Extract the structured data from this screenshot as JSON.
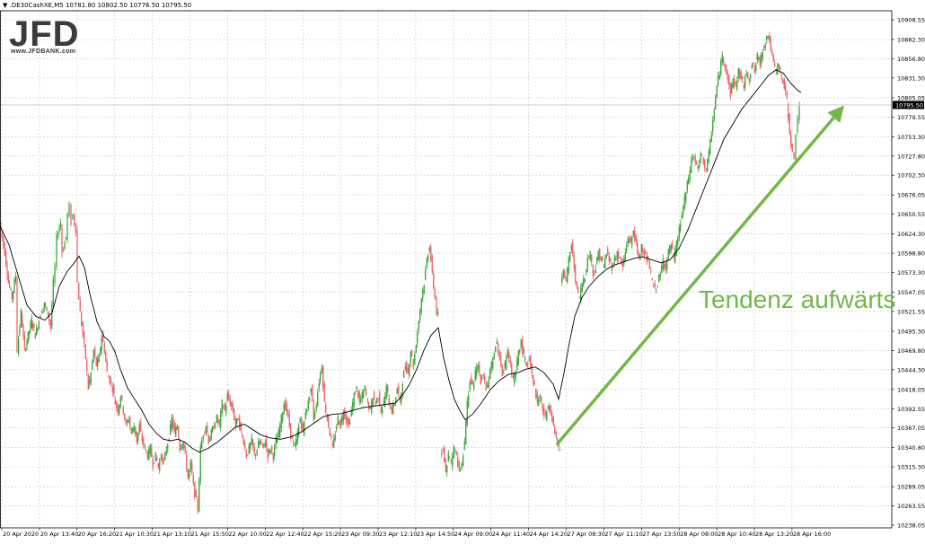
{
  "header": {
    "symbol_line": "▼ .DE30CashXE,M5  10781.80 10802.50 10776.50 10795.50"
  },
  "logo": {
    "mark": "JFD",
    "url": "www.JFDBANK.com"
  },
  "annotation": {
    "text": "Tendenz aufwärts",
    "color": "#71b849"
  },
  "colors": {
    "bull": "#2ca02c",
    "bear": "#e8595f",
    "ma": "#000000",
    "grid": "#c8c8c8",
    "price_tag_bg": "#000000"
  },
  "chart_data": {
    "type": "candlestick",
    "symbol": ".DE30CashXE",
    "timeframe": "M5",
    "last_bar": {
      "open": 10781.8,
      "high": 10802.5,
      "low": 10776.5,
      "close": 10795.5
    },
    "current_price": "10795.50",
    "ylim": [
      10238.05,
      10908.55
    ],
    "y_ticks": [
      "10908.55",
      "10882.30",
      "10856.80",
      "10831.30",
      "10805.05",
      "10779.55",
      "10753.30",
      "10727.80",
      "10702.30",
      "10676.05",
      "10650.55",
      "10624.30",
      "10598.80",
      "10573.30",
      "10547.05",
      "10521.55",
      "10495.30",
      "10469.80",
      "10444.30",
      "10418.05",
      "10392.55",
      "10367.05",
      "10340.80",
      "10315.30",
      "10289.05",
      "10263.55",
      "10238.05"
    ],
    "x_ticks": [
      "20 Apr 2020",
      "20 Apr 13:40",
      "20 Apr 16:20",
      "21 Apr 10:30",
      "21 Apr 13:10",
      "21 Apr 15:50",
      "22 Apr 10:00",
      "22 Apr 12:40",
      "22 Apr 15:20",
      "23 Apr 09:30",
      "23 Apr 12:10",
      "23 Apr 14:50",
      "24 Apr 09:00",
      "24 Apr 11:40",
      "24 Apr 14:20",
      "27 Apr 08:30",
      "27 Apr 11:10",
      "27 Apr 13:50",
      "28 Apr 08:00",
      "28 Apr 10:40",
      "28 Apr 13:20",
      "28 Apr 16:00"
    ],
    "grid": true,
    "price_path": [
      [
        0,
        10640
      ],
      [
        6,
        10600
      ],
      [
        10,
        10560
      ],
      [
        14,
        10540
      ],
      [
        18,
        10570
      ],
      [
        20,
        10470
      ],
      [
        24,
        10520
      ],
      [
        28,
        10470
      ],
      [
        32,
        10490
      ],
      [
        36,
        10510
      ],
      [
        40,
        10490
      ],
      [
        44,
        10510
      ],
      [
        46,
        10520
      ],
      [
        50,
        10530
      ],
      [
        54,
        10520
      ],
      [
        57,
        10500
      ],
      [
        60,
        10560
      ],
      [
        62,
        10580
      ],
      [
        64,
        10620
      ],
      [
        68,
        10640
      ],
      [
        70,
        10600
      ],
      [
        74,
        10620
      ],
      [
        76,
        10650
      ],
      [
        78,
        10660
      ],
      [
        80,
        10640
      ],
      [
        82,
        10650
      ],
      [
        85,
        10630
      ],
      [
        87,
        10560
      ],
      [
        90,
        10520
      ],
      [
        93,
        10490
      ],
      [
        96,
        10460
      ],
      [
        99,
        10420
      ],
      [
        102,
        10440
      ],
      [
        105,
        10470
      ],
      [
        108,
        10450
      ],
      [
        111,
        10460
      ],
      [
        114,
        10490
      ],
      [
        117,
        10470
      ],
      [
        120,
        10440
      ],
      [
        123,
        10430
      ],
      [
        126,
        10420
      ],
      [
        129,
        10400
      ],
      [
        132,
        10390
      ],
      [
        135,
        10410
      ],
      [
        138,
        10390
      ],
      [
        141,
        10370
      ],
      [
        144,
        10380
      ],
      [
        147,
        10360
      ],
      [
        150,
        10370
      ],
      [
        153,
        10350
      ],
      [
        156,
        10370
      ],
      [
        159,
        10350
      ],
      [
        162,
        10340
      ],
      [
        165,
        10330
      ],
      [
        168,
        10340
      ],
      [
        171,
        10320
      ],
      [
        174,
        10330
      ],
      [
        177,
        10315
      ],
      [
        180,
        10330
      ],
      [
        183,
        10320
      ],
      [
        186,
        10340
      ],
      [
        189,
        10355
      ],
      [
        192,
        10380
      ],
      [
        195,
        10360
      ],
      [
        198,
        10370
      ],
      [
        201,
        10340
      ],
      [
        204,
        10350
      ],
      [
        207,
        10330
      ],
      [
        210,
        10300
      ],
      [
        213,
        10320
      ],
      [
        216,
        10290
      ],
      [
        219,
        10270
      ],
      [
        221,
        10260
      ],
      [
        224,
        10340
      ],
      [
        227,
        10360
      ],
      [
        230,
        10370
      ],
      [
        233,
        10350
      ],
      [
        236,
        10360
      ],
      [
        239,
        10370
      ],
      [
        242,
        10380
      ],
      [
        245,
        10370
      ],
      [
        248,
        10400
      ],
      [
        251,
        10390
      ],
      [
        254,
        10410
      ],
      [
        257,
        10400
      ],
      [
        260,
        10390
      ],
      [
        263,
        10370
      ],
      [
        266,
        10380
      ],
      [
        269,
        10360
      ],
      [
        272,
        10350
      ],
      [
        275,
        10330
      ],
      [
        278,
        10340
      ],
      [
        281,
        10350
      ],
      [
        284,
        10330
      ],
      [
        287,
        10340
      ],
      [
        290,
        10350
      ],
      [
        293,
        10340
      ],
      [
        296,
        10350
      ],
      [
        299,
        10330
      ],
      [
        302,
        10340
      ],
      [
        305,
        10330
      ],
      [
        308,
        10350
      ],
      [
        311,
        10360
      ],
      [
        314,
        10380
      ],
      [
        317,
        10400
      ],
      [
        320,
        10390
      ],
      [
        323,
        10370
      ],
      [
        326,
        10350
      ],
      [
        329,
        10340
      ],
      [
        332,
        10360
      ],
      [
        335,
        10380
      ],
      [
        338,
        10360
      ],
      [
        341,
        10390
      ],
      [
        344,
        10400
      ],
      [
        347,
        10420
      ],
      [
        350,
        10380
      ],
      [
        353,
        10400
      ],
      [
        356,
        10430
      ],
      [
        359,
        10450
      ],
      [
        362,
        10400
      ],
      [
        365,
        10380
      ],
      [
        368,
        10360
      ],
      [
        371,
        10340
      ],
      [
        374,
        10360
      ],
      [
        377,
        10380
      ],
      [
        380,
        10370
      ],
      [
        383,
        10390
      ],
      [
        386,
        10380
      ],
      [
        389,
        10370
      ],
      [
        392,
        10390
      ],
      [
        395,
        10410
      ],
      [
        398,
        10420
      ],
      [
        401,
        10400
      ],
      [
        404,
        10410
      ],
      [
        407,
        10420
      ],
      [
        410,
        10400
      ],
      [
        413,
        10390
      ],
      [
        416,
        10410
      ],
      [
        419,
        10400
      ],
      [
        422,
        10410
      ],
      [
        425,
        10390
      ],
      [
        428,
        10400
      ],
      [
        431,
        10420
      ],
      [
        434,
        10400
      ],
      [
        437,
        10390
      ],
      [
        440,
        10400
      ],
      [
        443,
        10420
      ],
      [
        446,
        10400
      ],
      [
        449,
        10430
      ],
      [
        452,
        10450
      ],
      [
        455,
        10440
      ],
      [
        458,
        10470
      ],
      [
        461,
        10450
      ],
      [
        464,
        10480
      ],
      [
        467,
        10510
      ],
      [
        470,
        10540
      ],
      [
        473,
        10560
      ],
      [
        476,
        10590
      ],
      [
        479,
        10610
      ],
      [
        482,
        10570
      ],
      [
        485,
        10540
      ],
      [
        487,
        10520
      ],
      [
        491,
        10330
      ],
      [
        494,
        10340
      ],
      [
        497,
        10310
      ],
      [
        500,
        10330
      ],
      [
        503,
        10320
      ],
      [
        506,
        10340
      ],
      [
        509,
        10330
      ],
      [
        512,
        10310
      ],
      [
        515,
        10320
      ],
      [
        518,
        10350
      ],
      [
        521,
        10400
      ],
      [
        524,
        10430
      ],
      [
        527,
        10420
      ],
      [
        530,
        10440
      ],
      [
        533,
        10450
      ],
      [
        536,
        10430
      ],
      [
        539,
        10440
      ],
      [
        542,
        10420
      ],
      [
        545,
        10430
      ],
      [
        548,
        10450
      ],
      [
        551,
        10470
      ],
      [
        554,
        10480
      ],
      [
        557,
        10460
      ],
      [
        560,
        10440
      ],
      [
        563,
        10450
      ],
      [
        566,
        10470
      ],
      [
        569,
        10450
      ],
      [
        572,
        10430
      ],
      [
        575,
        10440
      ],
      [
        578,
        10470
      ],
      [
        581,
        10480
      ],
      [
        584,
        10460
      ],
      [
        587,
        10450
      ],
      [
        590,
        10460
      ],
      [
        593,
        10440
      ],
      [
        596,
        10420
      ],
      [
        599,
        10400
      ],
      [
        602,
        10410
      ],
      [
        605,
        10390
      ],
      [
        608,
        10380
      ],
      [
        611,
        10400
      ],
      [
        614,
        10390
      ],
      [
        617,
        10370
      ],
      [
        620,
        10350
      ],
      [
        623,
        10340
      ],
      [
        625,
        10560
      ],
      [
        628,
        10580
      ],
      [
        631,
        10560
      ],
      [
        634,
        10590
      ],
      [
        637,
        10610
      ],
      [
        640,
        10580
      ],
      [
        643,
        10550
      ],
      [
        646,
        10540
      ],
      [
        649,
        10560
      ],
      [
        652,
        10570
      ],
      [
        655,
        10590
      ],
      [
        658,
        10600
      ],
      [
        661,
        10570
      ],
      [
        664,
        10580
      ],
      [
        667,
        10600
      ],
      [
        670,
        10590
      ],
      [
        673,
        10580
      ],
      [
        676,
        10600
      ],
      [
        679,
        10590
      ],
      [
        682,
        10580
      ],
      [
        685,
        10590
      ],
      [
        688,
        10600
      ],
      [
        691,
        10590
      ],
      [
        694,
        10580
      ],
      [
        697,
        10600
      ],
      [
        700,
        10620
      ],
      [
        703,
        10610
      ],
      [
        706,
        10630
      ],
      [
        709,
        10610
      ],
      [
        712,
        10590
      ],
      [
        715,
        10610
      ],
      [
        718,
        10600
      ],
      [
        721,
        10590
      ],
      [
        724,
        10580
      ],
      [
        727,
        10560
      ],
      [
        730,
        10550
      ],
      [
        733,
        10560
      ],
      [
        736,
        10570
      ],
      [
        739,
        10590
      ],
      [
        742,
        10580
      ],
      [
        745,
        10600
      ],
      [
        748,
        10610
      ],
      [
        751,
        10590
      ],
      [
        754,
        10610
      ],
      [
        757,
        10630
      ],
      [
        760,
        10650
      ],
      [
        763,
        10670
      ],
      [
        766,
        10690
      ],
      [
        769,
        10710
      ],
      [
        772,
        10730
      ],
      [
        775,
        10720
      ],
      [
        778,
        10710
      ],
      [
        781,
        10730
      ],
      [
        784,
        10720
      ],
      [
        787,
        10710
      ],
      [
        790,
        10730
      ],
      [
        793,
        10760
      ],
      [
        796,
        10790
      ],
      [
        799,
        10820
      ],
      [
        802,
        10840
      ],
      [
        805,
        10860
      ],
      [
        808,
        10850
      ],
      [
        811,
        10830
      ],
      [
        814,
        10810
      ],
      [
        817,
        10830
      ],
      [
        820,
        10820
      ],
      [
        823,
        10840
      ],
      [
        826,
        10830
      ],
      [
        829,
        10820
      ],
      [
        832,
        10840
      ],
      [
        835,
        10830
      ],
      [
        838,
        10850
      ],
      [
        841,
        10840
      ],
      [
        844,
        10860
      ],
      [
        847,
        10850
      ],
      [
        850,
        10870
      ],
      [
        853,
        10880
      ],
      [
        856,
        10890
      ],
      [
        859,
        10870
      ],
      [
        862,
        10850
      ],
      [
        865,
        10840
      ],
      [
        868,
        10850
      ],
      [
        871,
        10830
      ],
      [
        874,
        10820
      ],
      [
        877,
        10800
      ],
      [
        880,
        10760
      ],
      [
        883,
        10730
      ],
      [
        885,
        10720
      ],
      [
        887,
        10760
      ],
      [
        889,
        10780
      ],
      [
        891,
        10795.5
      ]
    ],
    "moving_average": [
      [
        0,
        10635
      ],
      [
        10,
        10610
      ],
      [
        20,
        10570
      ],
      [
        30,
        10530
      ],
      [
        40,
        10515
      ],
      [
        50,
        10510
      ],
      [
        58,
        10520
      ],
      [
        66,
        10555
      ],
      [
        75,
        10575
      ],
      [
        82,
        10585
      ],
      [
        88,
        10595
      ],
      [
        94,
        10580
      ],
      [
        100,
        10545
      ],
      [
        108,
        10508
      ],
      [
        116,
        10488
      ],
      [
        122,
        10482
      ],
      [
        128,
        10468
      ],
      [
        134,
        10445
      ],
      [
        142,
        10420
      ],
      [
        150,
        10405
      ],
      [
        158,
        10390
      ],
      [
        166,
        10372
      ],
      [
        174,
        10360
      ],
      [
        182,
        10352
      ],
      [
        190,
        10350
      ],
      [
        198,
        10352
      ],
      [
        206,
        10348
      ],
      [
        214,
        10340
      ],
      [
        222,
        10335
      ],
      [
        232,
        10340
      ],
      [
        242,
        10348
      ],
      [
        252,
        10358
      ],
      [
        262,
        10368
      ],
      [
        272,
        10372
      ],
      [
        280,
        10366
      ],
      [
        290,
        10358
      ],
      [
        300,
        10354
      ],
      [
        312,
        10352
      ],
      [
        324,
        10355
      ],
      [
        336,
        10362
      ],
      [
        348,
        10372
      ],
      [
        360,
        10382
      ],
      [
        370,
        10385
      ],
      [
        380,
        10386
      ],
      [
        392,
        10390
      ],
      [
        404,
        10394
      ],
      [
        416,
        10396
      ],
      [
        428,
        10398
      ],
      [
        440,
        10400
      ],
      [
        448,
        10410
      ],
      [
        456,
        10425
      ],
      [
        464,
        10445
      ],
      [
        472,
        10470
      ],
      [
        480,
        10490
      ],
      [
        488,
        10500
      ],
      [
        494,
        10460
      ],
      [
        500,
        10430
      ],
      [
        506,
        10405
      ],
      [
        512,
        10390
      ],
      [
        518,
        10378
      ],
      [
        526,
        10385
      ],
      [
        536,
        10400
      ],
      [
        546,
        10418
      ],
      [
        556,
        10430
      ],
      [
        566,
        10438
      ],
      [
        576,
        10440
      ],
      [
        586,
        10445
      ],
      [
        596,
        10448
      ],
      [
        606,
        10440
      ],
      [
        616,
        10425
      ],
      [
        622,
        10405
      ],
      [
        628,
        10440
      ],
      [
        634,
        10480
      ],
      [
        640,
        10515
      ],
      [
        648,
        10540
      ],
      [
        656,
        10555
      ],
      [
        666,
        10568
      ],
      [
        676,
        10578
      ],
      [
        686,
        10584
      ],
      [
        696,
        10588
      ],
      [
        706,
        10592
      ],
      [
        716,
        10594
      ],
      [
        726,
        10590
      ],
      [
        736,
        10586
      ],
      [
        746,
        10590
      ],
      [
        756,
        10605
      ],
      [
        766,
        10630
      ],
      [
        776,
        10660
      ],
      [
        786,
        10690
      ],
      [
        796,
        10720
      ],
      [
        806,
        10750
      ],
      [
        816,
        10770
      ],
      [
        826,
        10790
      ],
      [
        836,
        10805
      ],
      [
        846,
        10820
      ],
      [
        856,
        10835
      ],
      [
        864,
        10842
      ],
      [
        872,
        10838
      ],
      [
        880,
        10825
      ],
      [
        888,
        10815
      ],
      [
        892,
        10812
      ]
    ],
    "trend_arrow": {
      "from": [
        620,
        10345
      ],
      "to": [
        940,
        10795
      ]
    }
  }
}
